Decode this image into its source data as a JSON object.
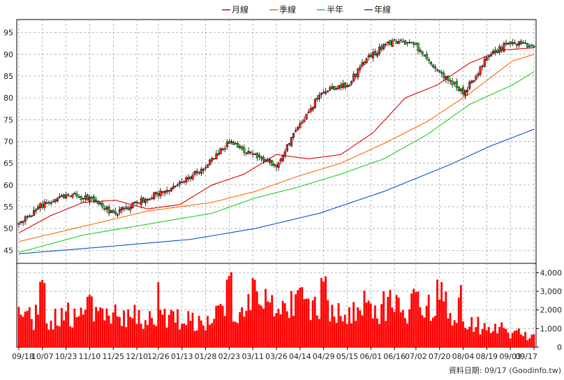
{
  "legend": [
    {
      "name": "月線",
      "color": "#dd0000"
    },
    {
      "name": "季線",
      "color": "#ff6600"
    },
    {
      "name": "半年",
      "color": "#22cc22"
    },
    {
      "name": "年線",
      "color": "#0055cc"
    }
  ],
  "footer": "資料日期: 09/17 (Goodinfo.tw)",
  "chart_data": [
    {
      "type": "candlestick",
      "title": "",
      "x_tick_labels": [
        "09/18",
        "10/07",
        "10/23",
        "11/10",
        "11/25",
        "12/10",
        "12/26",
        "01/13",
        "01/28",
        "02/23",
        "03/11",
        "03/26",
        "04/14",
        "04/29",
        "05/15",
        "06/01",
        "06/16",
        "07/02",
        "07/20",
        "08/04",
        "08/19",
        "09/03",
        "09/17"
      ],
      "ylim": [
        42,
        98
      ],
      "yticks": [
        45,
        50,
        55,
        60,
        65,
        70,
        75,
        80,
        85,
        90,
        95
      ],
      "grid": true,
      "bars": 241,
      "key_closes": [
        {
          "x": "09/18",
          "close": 51
        },
        {
          "x": "10/07",
          "close": 55.5
        },
        {
          "x": "10/23",
          "close": 57.5
        },
        {
          "x": "11/10",
          "close": 57
        },
        {
          "x": "11/25",
          "close": 53.5
        },
        {
          "x": "12/10",
          "close": 56
        },
        {
          "x": "12/26",
          "close": 58
        },
        {
          "x": "01/13",
          "close": 61
        },
        {
          "x": "01/28",
          "close": 64
        },
        {
          "x": "02/23",
          "close": 70
        },
        {
          "x": "03/11",
          "close": 67
        },
        {
          "x": "03/26",
          "close": 64.5
        },
        {
          "x": "04/14",
          "close": 74
        },
        {
          "x": "04/29",
          "close": 82
        },
        {
          "x": "05/15",
          "close": 83
        },
        {
          "x": "06/01",
          "close": 90
        },
        {
          "x": "06/16",
          "close": 93
        },
        {
          "x": "07/02",
          "close": 92
        },
        {
          "x": "07/20",
          "close": 86
        },
        {
          "x": "08/04",
          "close": 81
        },
        {
          "x": "08/19",
          "close": 89
        },
        {
          "x": "09/03",
          "close": 93
        },
        {
          "x": "09/17",
          "close": 92
        }
      ],
      "moving_averages": {
        "月線": [
          [
            0,
            49
          ],
          [
            15,
            53
          ],
          [
            30,
            56
          ],
          [
            45,
            56.5
          ],
          [
            60,
            54.5
          ],
          [
            75,
            55.5
          ],
          [
            90,
            60
          ],
          [
            105,
            62.5
          ],
          [
            120,
            67
          ],
          [
            135,
            66
          ],
          [
            150,
            67
          ],
          [
            165,
            72
          ],
          [
            180,
            80
          ],
          [
            195,
            83
          ],
          [
            210,
            88
          ],
          [
            225,
            91
          ],
          [
            240,
            91.5
          ]
        ],
        "季線": [
          [
            0,
            47
          ],
          [
            30,
            50.5
          ],
          [
            60,
            54
          ],
          [
            90,
            56
          ],
          [
            110,
            58.5
          ],
          [
            130,
            62
          ],
          [
            150,
            65
          ],
          [
            170,
            69.5
          ],
          [
            190,
            74.5
          ],
          [
            210,
            81
          ],
          [
            230,
            88.5
          ],
          [
            240,
            90
          ]
        ],
        "半年": [
          [
            0,
            44.5
          ],
          [
            30,
            48.5
          ],
          [
            60,
            51
          ],
          [
            90,
            53.5
          ],
          [
            110,
            57
          ],
          [
            130,
            59.5
          ],
          [
            150,
            62.5
          ],
          [
            170,
            66
          ],
          [
            190,
            71.5
          ],
          [
            210,
            78.5
          ],
          [
            230,
            83
          ],
          [
            240,
            86
          ]
        ],
        "年線": [
          [
            0,
            44.2
          ],
          [
            40,
            45.8
          ],
          [
            80,
            47.5
          ],
          [
            110,
            50
          ],
          [
            140,
            53.5
          ],
          [
            170,
            58.5
          ],
          [
            200,
            64.5
          ],
          [
            220,
            69
          ],
          [
            240,
            72.8
          ]
        ]
      }
    },
    {
      "type": "bar",
      "title": "",
      "ylim": [
        0,
        4500
      ],
      "yticks": [
        0,
        1000,
        2000,
        3000,
        4000
      ],
      "ytick_labels": [
        "0",
        "1,000",
        "2,000",
        "3,000",
        "4,000"
      ],
      "color": "#ff0000",
      "spikes": [
        {
          "x": "09/18",
          "value": 1900
        },
        {
          "x": "10/07",
          "value": 3700
        },
        {
          "x": "11/10",
          "value": 2900
        },
        {
          "x": "12/26",
          "value": 4000
        },
        {
          "x": "02/23",
          "value": 4200
        },
        {
          "x": "03/11",
          "value": 3900
        },
        {
          "x": "04/14",
          "value": 3600
        },
        {
          "x": "04/29",
          "value": 3900
        },
        {
          "x": "06/01",
          "value": 2600
        },
        {
          "x": "07/02",
          "value": 3400
        },
        {
          "x": "07/20",
          "value": 4000
        },
        {
          "x": "08/04",
          "value": 3500
        },
        {
          "x": "09/17",
          "value": 800
        }
      ]
    }
  ]
}
